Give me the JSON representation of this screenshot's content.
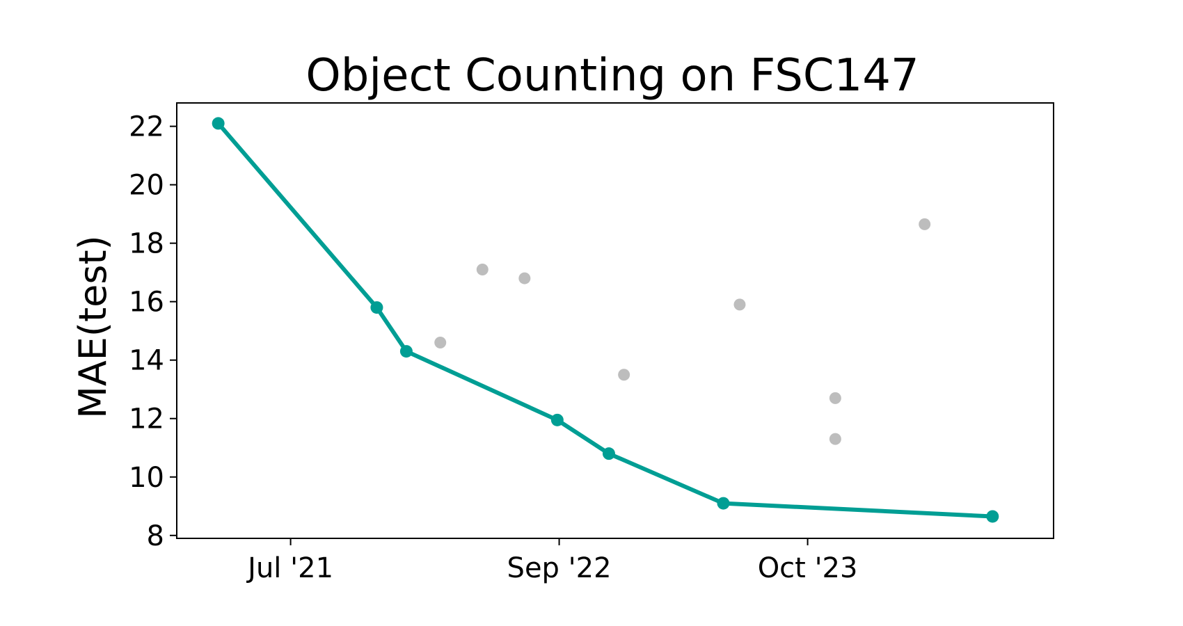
{
  "chart_data": {
    "type": "line",
    "title": "Object Counting on FSC147",
    "xlabel": "",
    "ylabel": "MAE(test)",
    "x_ticks": [
      {
        "date": "2021-07-01",
        "label": "Jul '21"
      },
      {
        "date": "2022-09-01",
        "label": "Sep '22"
      },
      {
        "date": "2023-10-01",
        "label": "Oct '23"
      }
    ],
    "y_ticks": [
      8,
      10,
      12,
      14,
      16,
      18,
      20,
      22
    ],
    "xlim": [
      "2021-01-01",
      "2024-10-26"
    ],
    "ylim": [
      7.9,
      22.8
    ],
    "grid": false,
    "colors": {
      "sota_line": "#009e94",
      "other_points": "#bdbdbd",
      "axes": "#000000"
    },
    "series": [
      {
        "style": "line-with-markers",
        "color": "#009e94",
        "points": [
          {
            "x": "2021-03-08",
            "y": 22.1
          },
          {
            "x": "2021-11-15",
            "y": 15.8
          },
          {
            "x": "2022-01-01",
            "y": 14.3
          },
          {
            "x": "2022-08-29",
            "y": 11.95
          },
          {
            "x": "2022-11-19",
            "y": 10.8
          },
          {
            "x": "2023-05-20",
            "y": 9.1
          },
          {
            "x": "2024-07-21",
            "y": 8.65
          }
        ]
      },
      {
        "style": "scatter",
        "color": "#bdbdbd",
        "points": [
          {
            "x": "2022-02-24",
            "y": 14.6
          },
          {
            "x": "2022-05-02",
            "y": 17.1
          },
          {
            "x": "2022-07-08",
            "y": 16.8
          },
          {
            "x": "2022-12-13",
            "y": 13.5
          },
          {
            "x": "2023-06-15",
            "y": 15.9
          },
          {
            "x": "2023-11-14",
            "y": 12.7
          },
          {
            "x": "2023-11-14",
            "y": 11.3
          },
          {
            "x": "2024-04-04",
            "y": 18.65
          }
        ]
      }
    ]
  }
}
